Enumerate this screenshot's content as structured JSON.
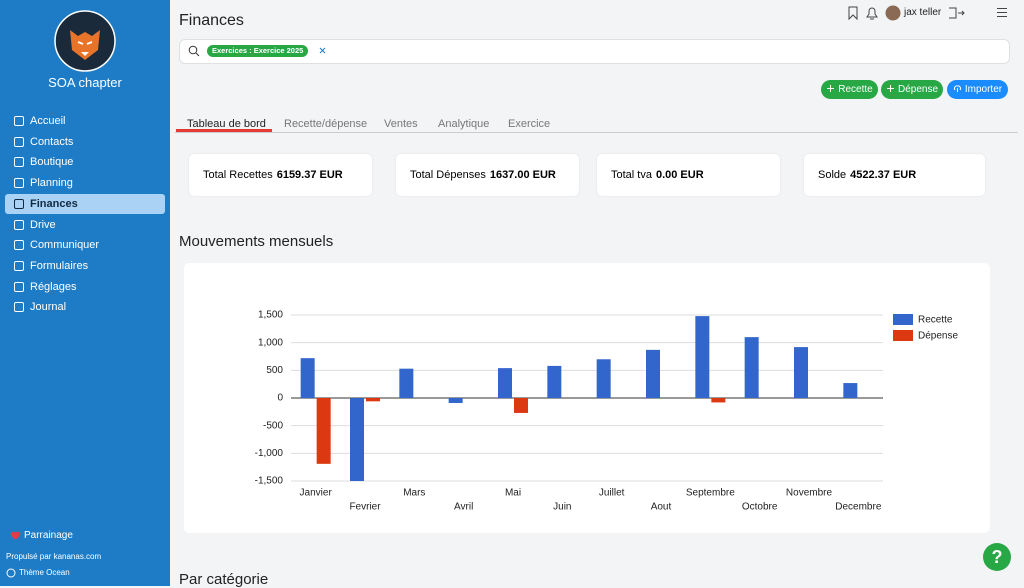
{
  "sidebar": {
    "brand": "SOA chapter",
    "menu": [
      "Accueil",
      "Contacts",
      "Boutique",
      "Planning",
      "Finances",
      "Drive",
      "Communiquer",
      "Formulaires",
      "Réglages",
      "Journal"
    ],
    "active": 4,
    "referral": "Parrainage",
    "powered_by": "Propulsé par kananas.com",
    "theme": "Thème Ocean"
  },
  "header": {
    "title": "Finances",
    "user": "jax teller",
    "filter_chip": "Exercices : Exercice 2025"
  },
  "actions": [
    "Recette",
    "Dépense",
    "Importer"
  ],
  "tabs": [
    "Tableau de bord",
    "Recette/dépense",
    "Ventes",
    "Analytique",
    "Exercice"
  ],
  "active_tab": 0,
  "cards": [
    {
      "label": "Total Recettes",
      "value": "6159.37 EUR"
    },
    {
      "label": "Total Dépenses",
      "value": "1637.00 EUR"
    },
    {
      "label": "Total tva",
      "value": "0.00 EUR"
    },
    {
      "label": "Solde",
      "value": "4522.37 EUR"
    }
  ],
  "section_title": "Mouvements mensuels",
  "next_section_title": "Par catégorie",
  "help_label": "?",
  "chart_data": {
    "type": "bar",
    "categories": [
      "Janvier",
      "Fevrier",
      "Mars",
      "Avril",
      "Mai",
      "Juin",
      "Juillet",
      "Aout",
      "Septembre",
      "Octobre",
      "Novembre",
      "Decembre"
    ],
    "series": [
      {
        "name": "Recette",
        "color": "#3366cc",
        "values": [
          720,
          -1500,
          530,
          -90,
          540,
          580,
          700,
          870,
          1480,
          1100,
          920,
          270
        ]
      },
      {
        "name": "Dépense",
        "color": "#dc3912",
        "values": [
          -1190,
          -60,
          0,
          0,
          -270,
          0,
          0,
          0,
          -80,
          0,
          0,
          0
        ]
      }
    ],
    "ylim": [
      -1500,
      1500
    ],
    "yticks": [
      {
        "value": 1500,
        "label": "1,500"
      },
      {
        "value": 1000,
        "label": "1,000"
      },
      500,
      0,
      -500,
      {
        "value": -1000,
        "label": "-1,000"
      },
      {
        "value": -1500,
        "label": "-1,500"
      }
    ],
    "grid": true,
    "legend": "right"
  }
}
